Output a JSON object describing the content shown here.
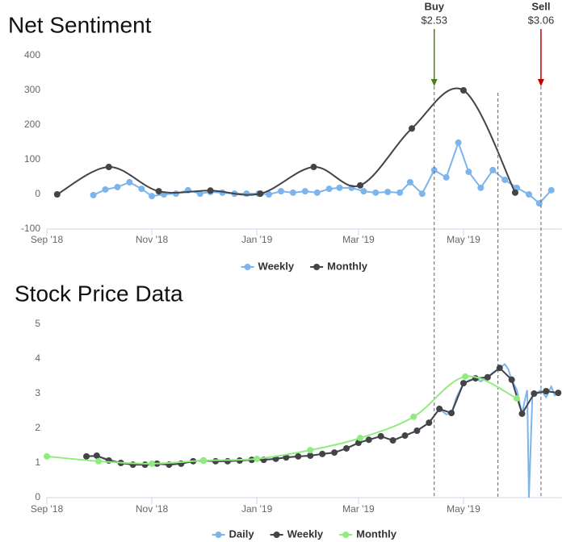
{
  "chart_data": [
    {
      "type": "line",
      "title": "Net Sentiment",
      "xlim": [
        0,
        299
      ],
      "xticks": [
        {
          "value": 0,
          "label": "Sep '18"
        },
        {
          "value": 61,
          "label": "Nov '18"
        },
        {
          "value": 122,
          "label": "Jan '19"
        },
        {
          "value": 181,
          "label": "Mar '19"
        },
        {
          "value": 242,
          "label": "May '19"
        }
      ],
      "ylim": [
        -100,
        400
      ],
      "yticks": [
        -100,
        0,
        100,
        200,
        300,
        400
      ],
      "series": [
        {
          "name": "Weekly",
          "color": "#7cb5ec",
          "marker": true,
          "smooth": false,
          "x": [
            27,
            34,
            41,
            48,
            55,
            61,
            68,
            75,
            82,
            89,
            95,
            102,
            109,
            116,
            123,
            129,
            136,
            143,
            150,
            157,
            164,
            170,
            177,
            184,
            191,
            198,
            205,
            211,
            218,
            225,
            232,
            239,
            245,
            252,
            259,
            266,
            273,
            280,
            286,
            293
          ],
          "values": [
            -2,
            14,
            21,
            35,
            16,
            -5,
            0,
            2,
            12,
            2,
            7,
            5,
            2,
            2,
            2,
            0,
            9,
            5,
            9,
            5,
            16,
            19,
            19,
            9,
            5,
            7,
            5,
            35,
            2,
            70,
            49,
            149,
            65,
            19,
            70,
            42,
            19,
            0,
            -26,
            12
          ]
        },
        {
          "name": "Monthly",
          "color": "#434348",
          "marker": true,
          "smooth": true,
          "x": [
            6,
            36,
            65,
            95,
            124,
            155,
            182,
            212,
            242,
            272
          ],
          "values": [
            0,
            79,
            9,
            11,
            2,
            79,
            26,
            190,
            300,
            5
          ]
        }
      ],
      "annotations": [
        {
          "text": "Buy",
          "subtext": "$2.53",
          "x": 225,
          "color": "#4d7f17"
        },
        {
          "x": 262
        },
        {
          "text": "Sell",
          "subtext": "$3.06",
          "x": 287,
          "color": "#c00000"
        }
      ]
    },
    {
      "type": "line",
      "title": "Stock Price Data",
      "xlim": [
        0,
        299
      ],
      "xticks": [
        {
          "value": 0,
          "label": "Sep '18"
        },
        {
          "value": 61,
          "label": "Nov '18"
        },
        {
          "value": 122,
          "label": "Jan '19"
        },
        {
          "value": 181,
          "label": "Mar '19"
        },
        {
          "value": 242,
          "label": "May '19"
        }
      ],
      "ylim": [
        0,
        5
      ],
      "yticks": [
        0,
        1,
        2,
        3,
        4,
        5
      ],
      "series": [
        {
          "name": "Daily",
          "color": "#7cb5ec",
          "marker": false,
          "smooth": false,
          "x": [
            23,
            29,
            36,
            43,
            50,
            57,
            64,
            71,
            78,
            85,
            91,
            98,
            105,
            112,
            119,
            126,
            133,
            139,
            146,
            153,
            160,
            167,
            174,
            181,
            187,
            194,
            201,
            208,
            215,
            222,
            228,
            232,
            235,
            238,
            242,
            246,
            249,
            252,
            256,
            259,
            263,
            266,
            268,
            270,
            273,
            276,
            278,
            279,
            280,
            282,
            284,
            287,
            290,
            293,
            295,
            297
          ],
          "values": [
            1.19,
            1.2,
            1.1,
            1.0,
            0.95,
            0.95,
            0.97,
            0.95,
            0.98,
            1.05,
            1.07,
            1.05,
            1.05,
            1.07,
            1.09,
            1.09,
            1.12,
            1.16,
            1.19,
            1.21,
            1.26,
            1.3,
            1.42,
            1.58,
            1.67,
            1.77,
            1.65,
            1.79,
            1.93,
            2.16,
            2.56,
            2.4,
            2.44,
            2.9,
            3.3,
            3.4,
            3.44,
            3.35,
            3.47,
            3.6,
            3.74,
            3.85,
            3.7,
            3.4,
            3.1,
            2.42,
            2.9,
            3.1,
            0,
            2.9,
            3.0,
            3.1,
            2.9,
            3.2,
            2.95,
            3.02
          ]
        },
        {
          "name": "Weekly",
          "color": "#434348",
          "marker": true,
          "smooth": false,
          "x": [
            23,
            29,
            36,
            43,
            50,
            57,
            64,
            71,
            78,
            85,
            91,
            98,
            105,
            112,
            119,
            126,
            133,
            139,
            146,
            153,
            160,
            167,
            174,
            181,
            187,
            194,
            201,
            208,
            215,
            222,
            228,
            235,
            242,
            249,
            256,
            263,
            270,
            276,
            283,
            290,
            297
          ],
          "values": [
            1.19,
            1.21,
            1.07,
            1.0,
            0.95,
            0.95,
            0.98,
            0.95,
            0.98,
            1.05,
            1.07,
            1.05,
            1.05,
            1.07,
            1.09,
            1.09,
            1.12,
            1.16,
            1.19,
            1.21,
            1.26,
            1.3,
            1.42,
            1.58,
            1.67,
            1.77,
            1.65,
            1.79,
            1.93,
            2.16,
            2.56,
            2.44,
            3.3,
            3.44,
            3.47,
            3.74,
            3.4,
            2.42,
            3.0,
            3.07,
            3.02
          ]
        },
        {
          "name": "Monthly",
          "color": "#90ed7d",
          "marker": true,
          "smooth": true,
          "x": [
            0,
            30,
            61,
            91,
            122,
            153,
            182,
            213,
            243,
            273
          ],
          "values": [
            1.19,
            1.05,
            0.98,
            1.07,
            1.12,
            1.37,
            1.72,
            2.33,
            3.49,
            2.86
          ]
        }
      ]
    }
  ]
}
